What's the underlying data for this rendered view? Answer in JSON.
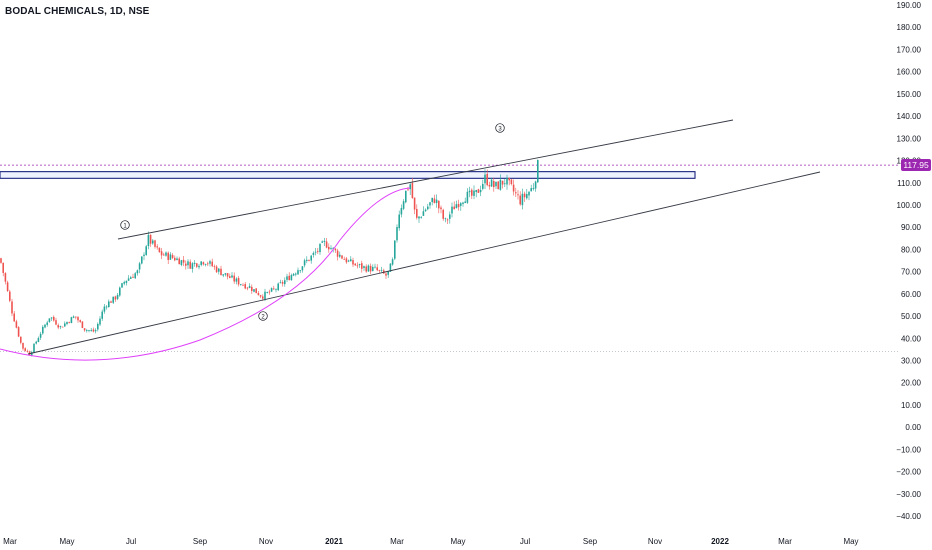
{
  "header": {
    "symbol_title": "BODAL CHEMICALS, 1D, NSE"
  },
  "price_axis": {
    "ticks": [
      "190.00",
      "180.00",
      "170.00",
      "160.00",
      "150.00",
      "140.00",
      "130.00",
      "120.00",
      "110.00",
      "100.00",
      "90.00",
      "80.00",
      "70.00",
      "60.00",
      "50.00",
      "40.00",
      "30.00",
      "20.00",
      "10.00",
      "0.00",
      "−10.00",
      "−20.00",
      "−30.00",
      "−40.00"
    ],
    "last_price": "117.95",
    "last_price_color": "#9c27b0"
  },
  "time_axis": {
    "labels": [
      {
        "text": "Mar",
        "bold": false
      },
      {
        "text": "May",
        "bold": false
      },
      {
        "text": "Jul",
        "bold": false
      },
      {
        "text": "Sep",
        "bold": false
      },
      {
        "text": "Nov",
        "bold": false
      },
      {
        "text": "2021",
        "bold": true
      },
      {
        "text": "Mar",
        "bold": false
      },
      {
        "text": "May",
        "bold": false
      },
      {
        "text": "Jul",
        "bold": false
      },
      {
        "text": "Sep",
        "bold": false
      },
      {
        "text": "Nov",
        "bold": false
      },
      {
        "text": "2022",
        "bold": true
      },
      {
        "text": "Mar",
        "bold": false
      },
      {
        "text": "May",
        "bold": false
      }
    ]
  },
  "annotations": [
    {
      "label": "1"
    },
    {
      "label": "2"
    },
    {
      "label": "3"
    }
  ],
  "colors": {
    "up": "#26a69a",
    "down": "#ef5350",
    "trendline": "#363a45",
    "arc": "#e040fb",
    "zone_border": "#2962ff",
    "price_line": "#9c27b0"
  },
  "chart_data": {
    "type": "candlestick",
    "x_range": [
      "2020-03",
      "2022-05"
    ],
    "y_range": [
      -40,
      190
    ],
    "last_close": 117.95,
    "key_points": [
      {
        "x": "2020-03",
        "close": 76
      },
      {
        "x": "2020-03-25",
        "close": 33
      },
      {
        "x": "2020-05",
        "close": 52
      },
      {
        "x": "2020-06",
        "close": 43
      },
      {
        "x": "2020-07",
        "close": 68
      },
      {
        "x": "2020-07-20",
        "close": 85
      },
      {
        "x": "2020-09",
        "close": 74
      },
      {
        "x": "2020-10",
        "close": 68
      },
      {
        "x": "2020-11",
        "close": 59
      },
      {
        "x": "2020-12",
        "close": 72
      },
      {
        "x": "2021-01",
        "close": 82
      },
      {
        "x": "2021-02",
        "close": 76
      },
      {
        "x": "2021-03-01",
        "close": 68
      },
      {
        "x": "2021-03-10",
        "close": 110
      },
      {
        "x": "2021-03-25",
        "close": 90
      },
      {
        "x": "2021-05",
        "close": 98
      },
      {
        "x": "2021-06",
        "close": 112
      },
      {
        "x": "2021-06-25",
        "close": 102
      },
      {
        "x": "2021-07-08",
        "close": 117.95
      }
    ],
    "horizontal_zone": [
      112,
      115
    ],
    "horizontal_line_levels": [
      117.95,
      34
    ]
  }
}
